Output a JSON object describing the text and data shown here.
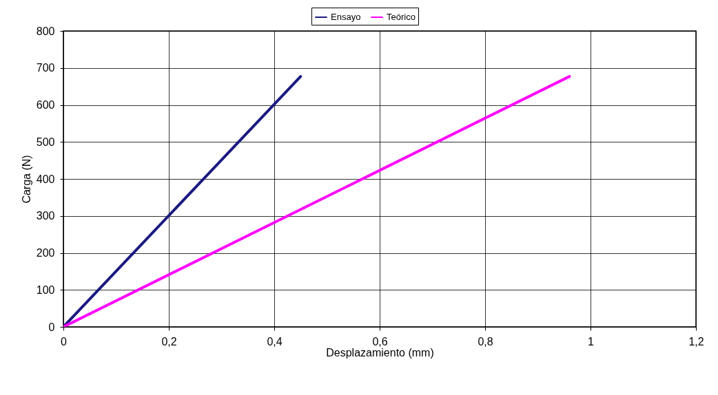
{
  "chart_data": {
    "type": "line",
    "xlabel": "Desplazamiento (mm)",
    "ylabel": "Carga (N)",
    "xlim": [
      0,
      1.2
    ],
    "ylim": [
      0,
      800
    ],
    "xticks": [
      0,
      {
        "value": 0.2,
        "label": "0,2"
      },
      {
        "value": 0.4,
        "label": "0,4"
      },
      {
        "value": 0.6,
        "label": "0,6"
      },
      {
        "value": 0.8,
        "label": "0,8"
      },
      1,
      {
        "value": 1.2,
        "label": "1,2"
      }
    ],
    "yticks": [
      0,
      100,
      200,
      300,
      400,
      500,
      600,
      700,
      800
    ],
    "grid": true,
    "legend": "top",
    "marker": "none",
    "line_style": "solid",
    "series": [
      {
        "name": "Ensayo",
        "color": "#1a1a80",
        "x": [
          0,
          0.45
        ],
        "values": [
          0,
          677
        ]
      },
      {
        "name": "Teórico",
        "color": "#ff00ff",
        "x": [
          0,
          0.96
        ],
        "values": [
          0,
          677
        ]
      }
    ]
  }
}
